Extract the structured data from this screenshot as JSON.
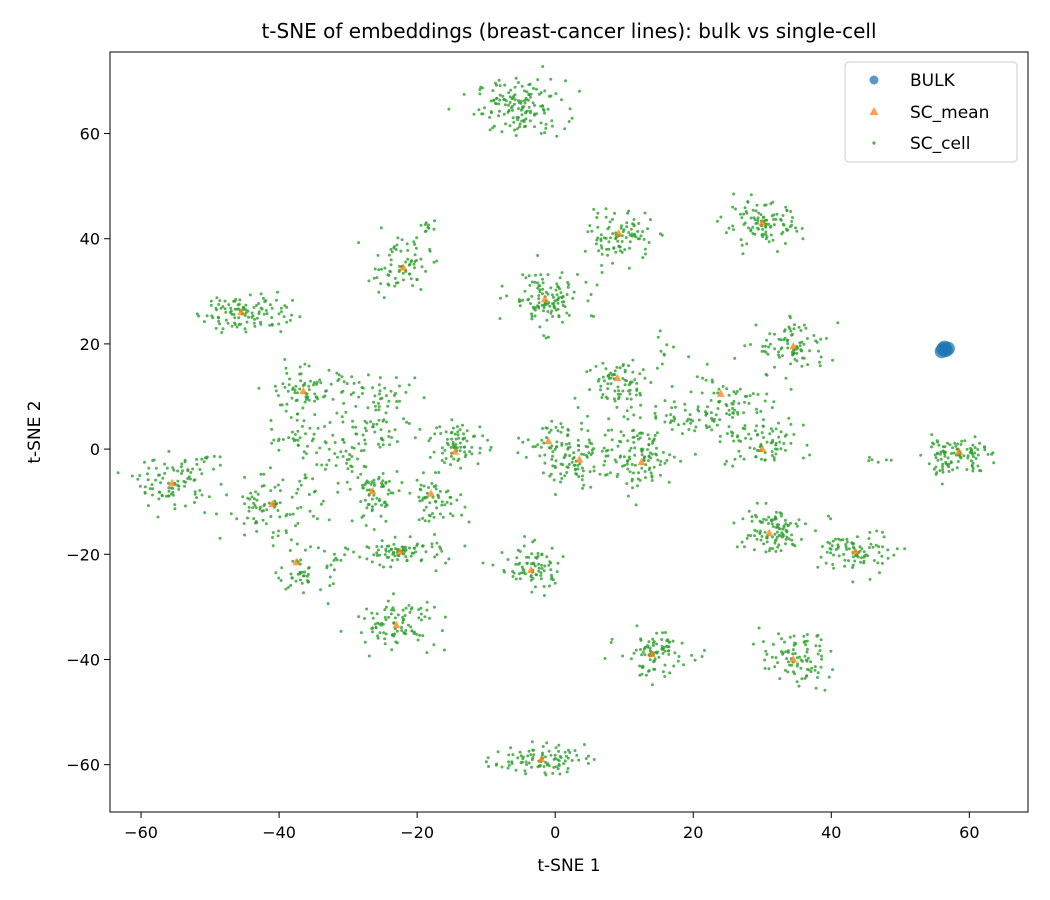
{
  "chart_data": {
    "type": "scatter",
    "title": "t-SNE of embeddings (breast-cancer lines): bulk vs single-cell",
    "xlabel": "t-SNE 1",
    "ylabel": "t-SNE 2",
    "xlim": [
      -64.5,
      68.5
    ],
    "ylim": [
      -69,
      75.5
    ],
    "xticks": [
      -60,
      -40,
      -20,
      0,
      20,
      40,
      60
    ],
    "yticks": [
      -60,
      -40,
      -20,
      0,
      20,
      40,
      60
    ],
    "xtick_labels": [
      "−60",
      "−40",
      "−20",
      "0",
      "20",
      "40",
      "60"
    ],
    "ytick_labels": [
      "−60",
      "−40",
      "−20",
      "0",
      "20",
      "40",
      "60"
    ],
    "grid": false,
    "legend_position": "top-right",
    "colors": {
      "bulk": "#1f77b4",
      "sc_mean": "#ff7f0e",
      "sc_cell": "#2ca02c"
    },
    "series": [
      {
        "name": "BULK",
        "marker": "circle",
        "points": [
          [
            56.2,
            19.0
          ],
          [
            56.6,
            18.8
          ],
          [
            56.4,
            19.3
          ],
          [
            56.0,
            18.6
          ],
          [
            56.9,
            19.1
          ]
        ]
      },
      {
        "name": "SC_mean",
        "marker": "triangle",
        "points": [
          [
            -45.5,
            26.0
          ],
          [
            -22,
            34.5
          ],
          [
            -1.5,
            28.5
          ],
          [
            9.2,
            41
          ],
          [
            30,
            43
          ],
          [
            -36.5,
            11
          ],
          [
            9,
            13.5
          ],
          [
            24,
            10.5
          ],
          [
            34.5,
            19.5
          ],
          [
            -55.5,
            -6.5
          ],
          [
            -41,
            -10.5
          ],
          [
            -26.5,
            -8
          ],
          [
            -18,
            -8.5
          ],
          [
            -14.5,
            -0.5
          ],
          [
            3.5,
            -2
          ],
          [
            12.5,
            -2.5
          ],
          [
            30,
            0
          ],
          [
            58.5,
            -0.5
          ],
          [
            31,
            -16
          ],
          [
            43.5,
            -19.5
          ],
          [
            -37.5,
            -21.5
          ],
          [
            -22.5,
            -19.5
          ],
          [
            -3.5,
            -23
          ],
          [
            -23,
            -33.5
          ],
          [
            14,
            -39
          ],
          [
            34.5,
            -40
          ],
          [
            -2,
            -59
          ],
          [
            -1,
            1.5
          ]
        ]
      },
      {
        "name": "SC_cell",
        "marker": "point",
        "clusters": [
          {
            "center": [
              -5,
              65
            ],
            "spread": [
              3.2,
              2.6
            ],
            "n": 150
          },
          {
            "center": [
              -45,
              26
            ],
            "spread": [
              3.4,
              1.9
            ],
            "n": 110
          },
          {
            "center": [
              -22.5,
              35
            ],
            "spread": [
              2.2,
              2.6
            ],
            "n": 75
          },
          {
            "center": [
              -18.5,
              42
            ],
            "spread": [
              0.9,
              0.6
            ],
            "n": 10
          },
          {
            "center": [
              -1.5,
              28.5
            ],
            "spread": [
              2.6,
              2.8
            ],
            "n": 120
          },
          {
            "center": [
              9.5,
              40.5
            ],
            "spread": [
              2.3,
              2.3
            ],
            "n": 95
          },
          {
            "center": [
              30,
              42.5
            ],
            "spread": [
              2.8,
              2.1
            ],
            "n": 105
          },
          {
            "center": [
              -36,
              11
            ],
            "spread": [
              3.2,
              2.3
            ],
            "n": 85
          },
          {
            "center": [
              -24.5,
              9
            ],
            "spread": [
              2.6,
              2.6
            ],
            "n": 50
          },
          {
            "center": [
              9.5,
              12.5
            ],
            "spread": [
              2.6,
              2.6
            ],
            "n": 80
          },
          {
            "center": [
              24.5,
              8.5
            ],
            "spread": [
              4.6,
              3.2
            ],
            "n": 105
          },
          {
            "center": [
              34.5,
              19.5
            ],
            "spread": [
              2.6,
              2.6
            ],
            "n": 85
          },
          {
            "center": [
              -55.5,
              -6.5
            ],
            "spread": [
              2.6,
              2.3
            ],
            "n": 85
          },
          {
            "center": [
              -51,
              -2
            ],
            "spread": [
              1.6,
              0.9
            ],
            "n": 12
          },
          {
            "center": [
              -41,
              -11
            ],
            "spread": [
              3.6,
              3.0
            ],
            "n": 95
          },
          {
            "center": [
              -37.5,
              1.5
            ],
            "spread": [
              2.6,
              1.6
            ],
            "n": 30
          },
          {
            "center": [
              -31,
              -2
            ],
            "spread": [
              2.1,
              3.6
            ],
            "n": 45
          },
          {
            "center": [
              -26,
              -8.5
            ],
            "spread": [
              1.6,
              3.0
            ],
            "n": 65
          },
          {
            "center": [
              -26,
              2
            ],
            "spread": [
              1.6,
              2.1
            ],
            "n": 30
          },
          {
            "center": [
              -17.5,
              -9.5
            ],
            "spread": [
              2.1,
              2.1
            ],
            "n": 60
          },
          {
            "center": [
              -14,
              1
            ],
            "spread": [
              2.1,
              2.1
            ],
            "n": 75
          },
          {
            "center": [
              3.5,
              -1.5
            ],
            "spread": [
              2.9,
              3.0
            ],
            "n": 110
          },
          {
            "center": [
              12.5,
              -1.5
            ],
            "spread": [
              2.3,
              3.1
            ],
            "n": 105
          },
          {
            "center": [
              30,
              1
            ],
            "spread": [
              3.1,
              2.1
            ],
            "n": 70
          },
          {
            "center": [
              56,
              -1.5
            ],
            "spread": [
              1.3,
              1.8
            ],
            "n": 50
          },
          {
            "center": [
              60,
              -0.5
            ],
            "spread": [
              1.3,
              1.8
            ],
            "n": 55
          },
          {
            "center": [
              31,
              -15.5
            ],
            "spread": [
              2.6,
              2.3
            ],
            "n": 105
          },
          {
            "center": [
              44,
              -19.5
            ],
            "spread": [
              2.6,
              2.1
            ],
            "n": 90
          },
          {
            "center": [
              -36,
              -23.5
            ],
            "spread": [
              2.1,
              2.1
            ],
            "n": 55
          },
          {
            "center": [
              -22.5,
              -19.5
            ],
            "spread": [
              3.4,
              1.2
            ],
            "n": 85
          },
          {
            "center": [
              -3.5,
              -22.5
            ],
            "spread": [
              2.3,
              2.3
            ],
            "n": 80
          },
          {
            "center": [
              -23,
              -33
            ],
            "spread": [
              3.0,
              2.3
            ],
            "n": 95
          },
          {
            "center": [
              14.5,
              -39
            ],
            "spread": [
              2.6,
              2.1
            ],
            "n": 90
          },
          {
            "center": [
              35,
              -40
            ],
            "spread": [
              2.6,
              2.6
            ],
            "n": 90
          },
          {
            "center": [
              -2.5,
              -59
            ],
            "spread": [
              3.3,
              1.3
            ],
            "n": 95
          },
          {
            "center": [
              -1,
              1.5
            ],
            "spread": [
              1.6,
              2.6
            ],
            "n": 25
          },
          {
            "center": [
              19,
              6
            ],
            "spread": [
              2.1,
              1.3
            ],
            "n": 20
          },
          {
            "center": [
              16.5,
              19.5
            ],
            "spread": [
              1.1,
              1.3
            ],
            "n": 8
          },
          {
            "center": [
              47,
              -2
            ],
            "spread": [
              0.9,
              0.4
            ],
            "n": 6
          }
        ]
      }
    ]
  }
}
